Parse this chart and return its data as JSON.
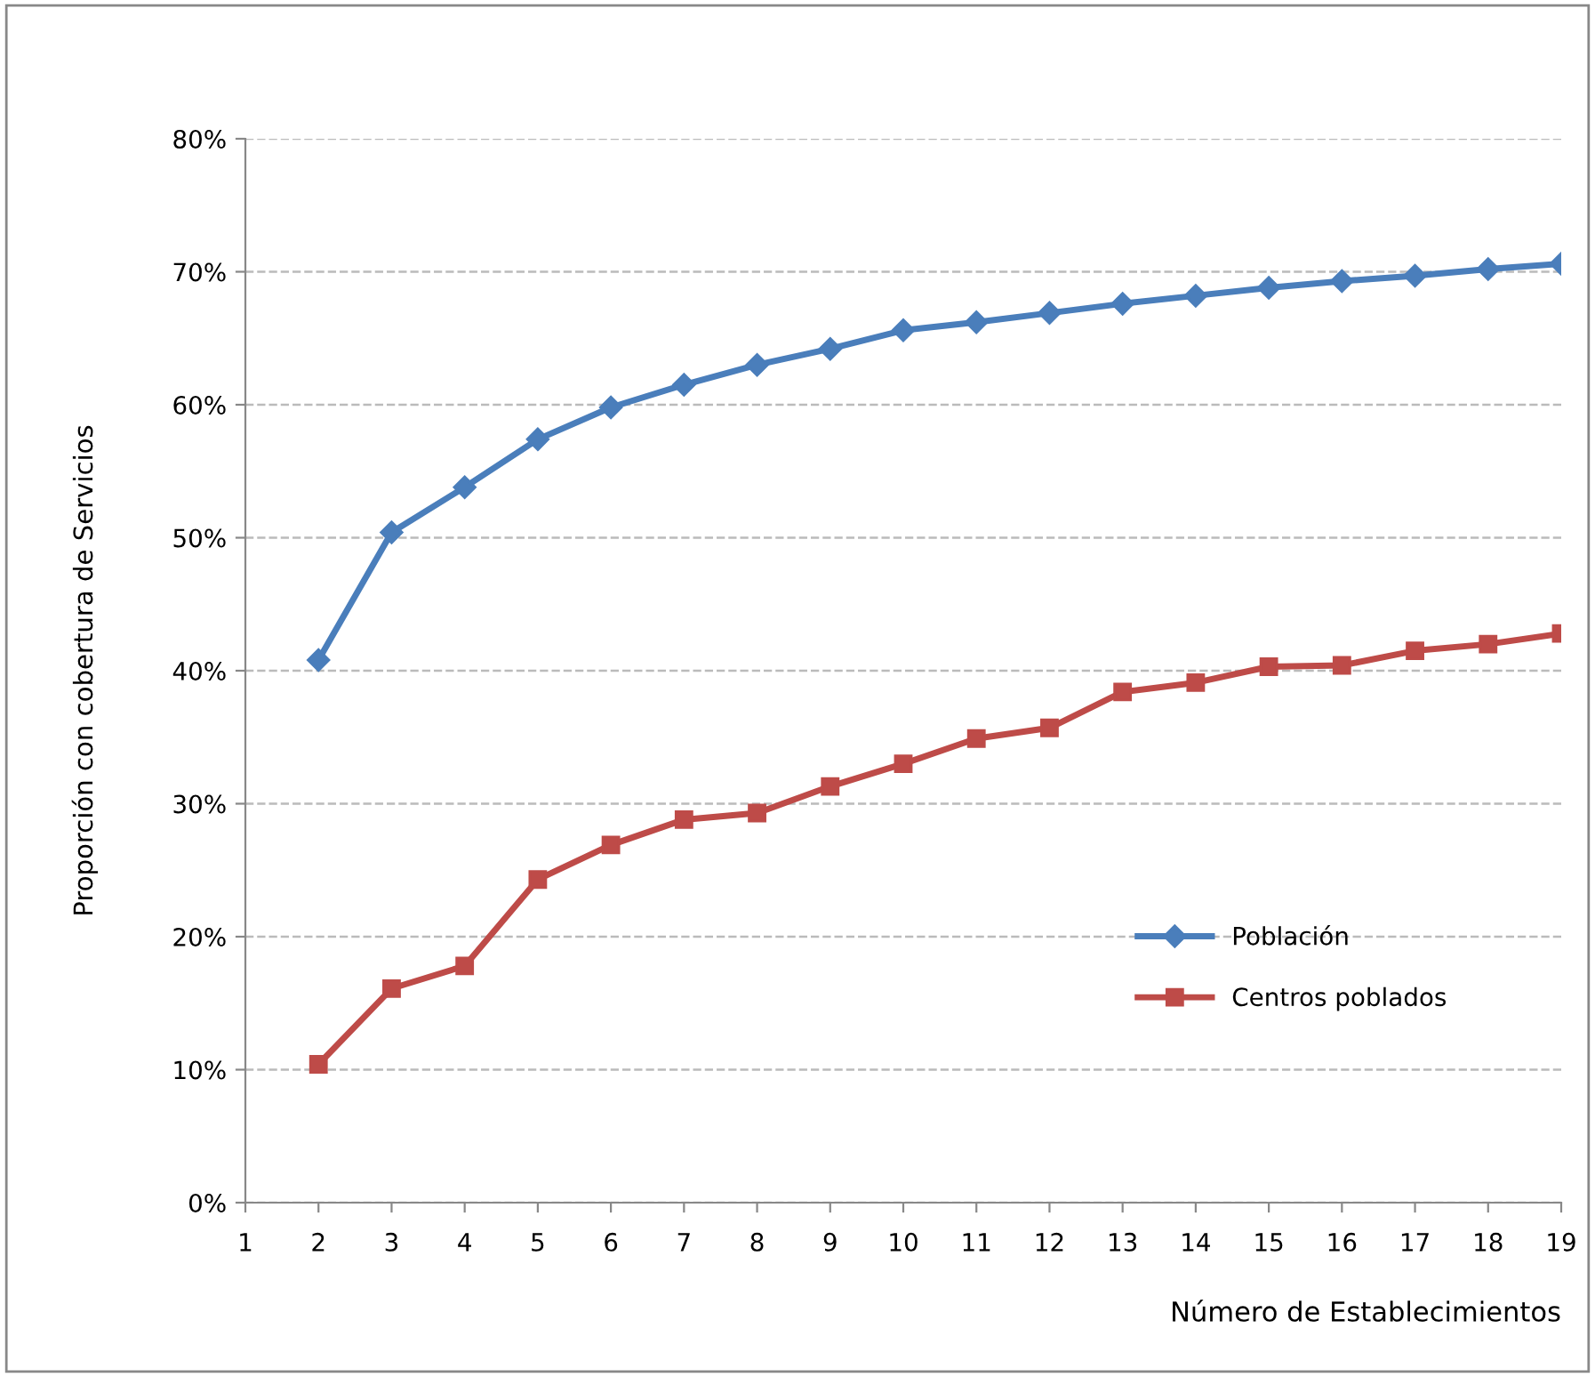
{
  "chart_data": {
    "type": "line",
    "xlabel": "Número de Establecimientos",
    "ylabel": "Proporción con cobertura de Servicios",
    "categories": [
      "1",
      "2",
      "3",
      "4",
      "5",
      "6",
      "7",
      "8",
      "9",
      "10",
      "11",
      "12",
      "13",
      "14",
      "15",
      "16",
      "17",
      "18",
      "19"
    ],
    "ylim": [
      0,
      80
    ],
    "yticks": [
      {
        "value": 0,
        "label": "0%"
      },
      {
        "value": 10,
        "label": "10%"
      },
      {
        "value": 20,
        "label": "20%"
      },
      {
        "value": 30,
        "label": "30%"
      },
      {
        "value": 40,
        "label": "40%"
      },
      {
        "value": 50,
        "label": "50%"
      },
      {
        "value": 60,
        "label": "60%"
      },
      {
        "value": 70,
        "label": "70%"
      },
      {
        "value": 80,
        "label": "80%"
      }
    ],
    "grid": "y",
    "legend": "right",
    "line_style": "solid",
    "series": [
      {
        "name": "Población",
        "color": "#4a7ebb",
        "marker": "diamond",
        "values": [
          null,
          40.8,
          50.4,
          53.8,
          57.4,
          59.8,
          61.5,
          63.0,
          64.2,
          65.6,
          66.2,
          66.9,
          67.6,
          68.2,
          68.8,
          69.3,
          69.7,
          70.2,
          70.6
        ]
      },
      {
        "name": "Centros poblados",
        "color": "#be4b48",
        "marker": "square",
        "values": [
          null,
          10.4,
          16.1,
          17.8,
          24.3,
          26.9,
          28.8,
          29.3,
          31.3,
          33.0,
          34.9,
          35.7,
          38.4,
          39.1,
          40.3,
          40.4,
          41.5,
          42.0,
          42.8
        ]
      }
    ]
  }
}
